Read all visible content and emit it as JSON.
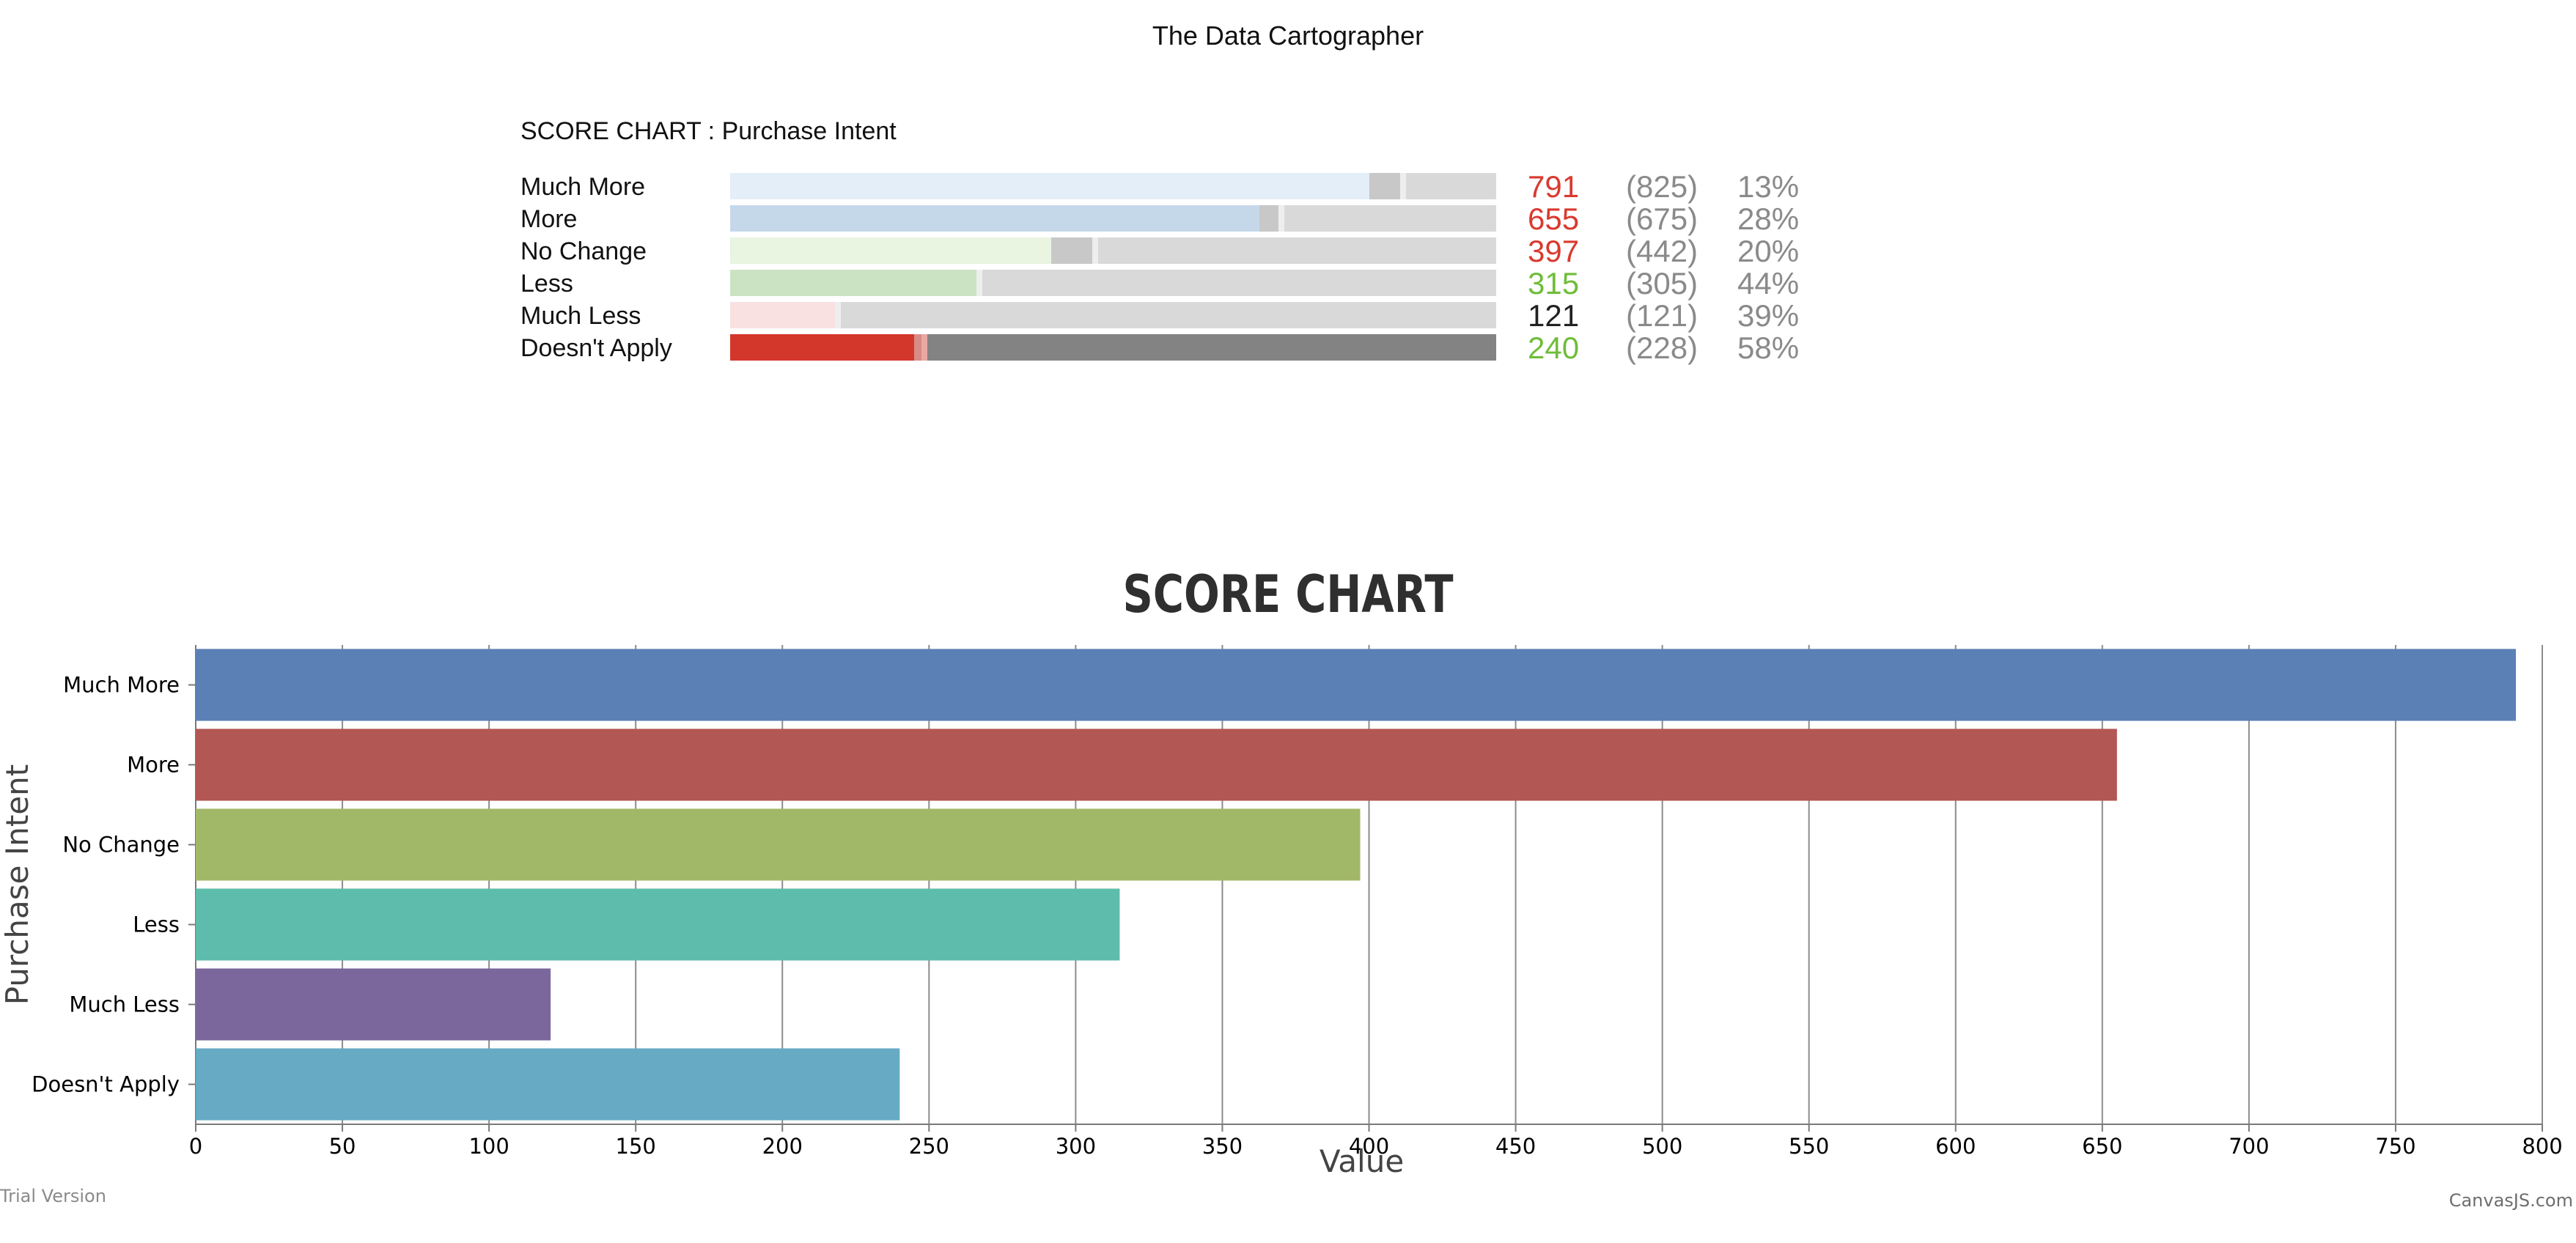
{
  "app_title": "The Data Cartographer",
  "score_chart": {
    "title": "SCORE CHART : Purchase Intent",
    "rows": [
      {
        "label": "Much More",
        "value": "791",
        "previous": "(825)",
        "percent": "13%",
        "value_color": "#d93a2f",
        "fill_color": "#e4eef8",
        "fill_fraction": 0.834,
        "marker_fraction": 0.875,
        "dark_track": false
      },
      {
        "label": "More",
        "value": "655",
        "previous": "(675)",
        "percent": "28%",
        "value_color": "#d93a2f",
        "fill_color": "#c5d8ea",
        "fill_fraction": 0.691,
        "marker_fraction": 0.716,
        "dark_track": false
      },
      {
        "label": "No Change",
        "value": "397",
        "previous": "(442)",
        "percent": "20%",
        "value_color": "#d93a2f",
        "fill_color": "#e9f4e1",
        "fill_fraction": 0.419,
        "marker_fraction": 0.473,
        "dark_track": false
      },
      {
        "label": "Less",
        "value": "315",
        "previous": "(305)",
        "percent": "44%",
        "value_color": "#6fbd3a",
        "fill_color": "#cbe3c3",
        "fill_fraction": 0.322,
        "marker_fraction": 0.322,
        "dark_track": false
      },
      {
        "label": "Much Less",
        "value": "121",
        "previous": "(121)",
        "percent": "39%",
        "value_color": "#222222",
        "fill_color": "#f9e1e1",
        "fill_fraction": 0.137,
        "marker_fraction": 0.137,
        "dark_track": false
      },
      {
        "label": "Doesn't Apply",
        "value": "240",
        "previous": "(228)",
        "percent": "58%",
        "value_color": "#6fbd3a",
        "fill_color": "#d3372c",
        "fill_fraction": 0.24,
        "marker_fraction": 0.25,
        "dark_track": true
      }
    ]
  },
  "chart_data": {
    "type": "bar",
    "orientation": "horizontal",
    "title": "SCORE CHART",
    "xlabel": "Value",
    "ylabel": "Purchase Intent",
    "categories": [
      "Much More",
      "More",
      "No Change",
      "Less",
      "Much Less",
      "Doesn't Apply"
    ],
    "values": [
      791,
      655,
      397,
      315,
      121,
      240
    ],
    "colors": [
      "#5b80b6",
      "#b25753",
      "#a2b869",
      "#5dbcab",
      "#7b679c",
      "#66aac4"
    ],
    "xlim": [
      0,
      800
    ],
    "xticks": [
      "0",
      "50",
      "100",
      "150",
      "200",
      "250",
      "300",
      "350",
      "400",
      "450",
      "500",
      "550",
      "600",
      "650",
      "700",
      "750",
      "800"
    ],
    "grid": true,
    "legend": "none"
  },
  "watermarks": {
    "left": "Trial Version",
    "right": "CanvasJS.com"
  }
}
